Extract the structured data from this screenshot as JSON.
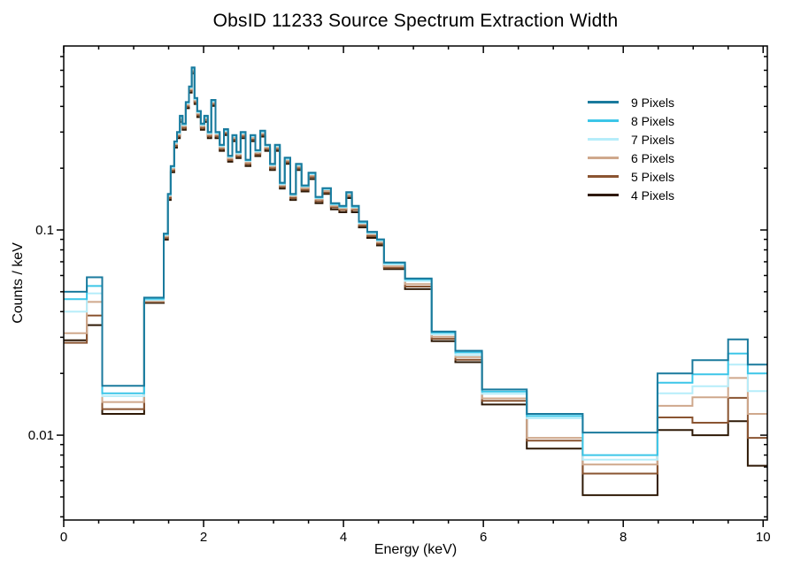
{
  "chart_data": {
    "type": "line",
    "mode": "step-histogram",
    "title": "ObsID 11233 Source Spectrum Extraction Width",
    "xlabel": "Energy (keV)",
    "ylabel": "Counts / keV",
    "yscale": "log",
    "xlim": [
      0,
      10.06
    ],
    "ylim": [
      0.00386,
      0.788
    ],
    "grid": false,
    "legend_position": "upper-right",
    "background": "#ffffff",
    "frame_color": "#000000",
    "x_major_ticks": [
      0,
      2,
      4,
      6,
      8,
      10
    ],
    "x_minor_ticks": [
      0.5,
      1,
      1.5,
      2.5,
      3,
      3.5,
      4.5,
      5,
      5.5,
      6.5,
      7,
      7.5,
      8.5,
      9,
      9.5
    ],
    "y_major_ticks": [
      {
        "value": 0.1,
        "label": "0.1"
      },
      {
        "value": 0.01,
        "label": "0.01"
      }
    ],
    "y_minor_ticks": [
      0.004,
      0.005,
      0.006,
      0.007,
      0.008,
      0.009,
      0.02,
      0.03,
      0.04,
      0.05,
      0.06,
      0.07,
      0.08,
      0.09,
      0.2,
      0.3,
      0.4,
      0.5,
      0.6,
      0.7
    ],
    "bin_edges": [
      0,
      0.33,
      0.55,
      1.15,
      1.43,
      1.49,
      1.53,
      1.58,
      1.62,
      1.66,
      1.7,
      1.745,
      1.79,
      1.83,
      1.87,
      1.91,
      1.96,
      2.01,
      2.06,
      2.11,
      2.17,
      2.23,
      2.29,
      2.35,
      2.41,
      2.47,
      2.53,
      2.6,
      2.67,
      2.74,
      2.81,
      2.88,
      2.95,
      3.02,
      3.09,
      3.16,
      3.24,
      3.32,
      3.4,
      3.5,
      3.6,
      3.7,
      3.82,
      3.94,
      4.04,
      4.12,
      4.22,
      4.34,
      4.48,
      4.58,
      4.88,
      5.26,
      5.6,
      5.98,
      6.62,
      7.42,
      8.49,
      8.99,
      9.5,
      9.78,
      10.06
    ],
    "series": [
      {
        "name": "9 Pixels",
        "color": "#1a7a9d",
        "values": [
          0.05,
          0.0588,
          0.0174,
          0.0468,
          0.096,
          0.15,
          0.205,
          0.27,
          0.3,
          0.36,
          0.33,
          0.42,
          0.5,
          0.62,
          0.44,
          0.38,
          0.33,
          0.36,
          0.3,
          0.43,
          0.3,
          0.26,
          0.31,
          0.23,
          0.29,
          0.24,
          0.3,
          0.22,
          0.29,
          0.245,
          0.305,
          0.26,
          0.21,
          0.26,
          0.17,
          0.225,
          0.15,
          0.21,
          0.165,
          0.19,
          0.145,
          0.16,
          0.135,
          0.131,
          0.153,
          0.131,
          0.11,
          0.098,
          0.09,
          0.0695,
          0.058,
          0.032,
          0.0258,
          0.0167,
          0.0127,
          0.0103,
          0.02,
          0.0232,
          0.0293,
          0.0221
        ]
      },
      {
        "name": "8 Pixels",
        "color": "#3cc6e8",
        "values": [
          0.046,
          0.0533,
          0.016,
          0.0462,
          0.0955,
          0.149,
          0.204,
          0.269,
          0.299,
          0.358,
          0.328,
          0.418,
          0.498,
          0.617,
          0.438,
          0.378,
          0.328,
          0.358,
          0.299,
          0.428,
          0.299,
          0.259,
          0.308,
          0.229,
          0.289,
          0.239,
          0.299,
          0.219,
          0.289,
          0.244,
          0.303,
          0.259,
          0.209,
          0.259,
          0.169,
          0.224,
          0.149,
          0.209,
          0.164,
          0.189,
          0.144,
          0.159,
          0.134,
          0.13,
          0.152,
          0.13,
          0.109,
          0.0975,
          0.0896,
          0.069,
          0.0575,
          0.0316,
          0.0253,
          0.0163,
          0.0124,
          0.008,
          0.018,
          0.0198,
          0.025,
          0.02
        ]
      },
      {
        "name": "7 Pixels",
        "color": "#b6edfa",
        "values": [
          0.04,
          0.0491,
          0.0155,
          0.0456,
          0.0946,
          0.148,
          0.202,
          0.266,
          0.296,
          0.355,
          0.325,
          0.414,
          0.493,
          0.611,
          0.433,
          0.374,
          0.325,
          0.355,
          0.296,
          0.424,
          0.296,
          0.256,
          0.305,
          0.227,
          0.286,
          0.236,
          0.296,
          0.217,
          0.286,
          0.241,
          0.3,
          0.256,
          0.207,
          0.256,
          0.167,
          0.222,
          0.148,
          0.207,
          0.163,
          0.187,
          0.143,
          0.158,
          0.133,
          0.129,
          0.151,
          0.129,
          0.108,
          0.0965,
          0.0887,
          0.068,
          0.0565,
          0.031,
          0.0246,
          0.0159,
          0.0121,
          0.0076,
          0.016,
          0.0173,
          0.0221,
          0.0164
        ]
      },
      {
        "name": "6 Pixels",
        "color": "#cfa88c",
        "values": [
          0.0314,
          0.0446,
          0.0145,
          0.045,
          0.0931,
          0.146,
          0.199,
          0.262,
          0.291,
          0.349,
          0.32,
          0.407,
          0.485,
          0.601,
          0.427,
          0.369,
          0.32,
          0.349,
          0.291,
          0.417,
          0.291,
          0.252,
          0.301,
          0.223,
          0.281,
          0.233,
          0.291,
          0.213,
          0.281,
          0.238,
          0.296,
          0.252,
          0.204,
          0.252,
          0.165,
          0.218,
          0.146,
          0.204,
          0.16,
          0.184,
          0.141,
          0.155,
          0.131,
          0.127,
          0.148,
          0.127,
          0.107,
          0.0951,
          0.0873,
          0.0665,
          0.0545,
          0.0302,
          0.024,
          0.0151,
          0.0097,
          0.0072,
          0.0139,
          0.0153,
          0.019,
          0.0127
        ]
      },
      {
        "name": "5 Pixels",
        "color": "#8a5431",
        "values": [
          0.0282,
          0.0383,
          0.0134,
          0.0446,
          0.0914,
          0.143,
          0.195,
          0.257,
          0.286,
          0.343,
          0.314,
          0.4,
          0.476,
          0.59,
          0.419,
          0.362,
          0.314,
          0.343,
          0.286,
          0.409,
          0.286,
          0.248,
          0.295,
          0.219,
          0.276,
          0.228,
          0.286,
          0.209,
          0.276,
          0.233,
          0.29,
          0.248,
          0.2,
          0.248,
          0.162,
          0.214,
          0.143,
          0.2,
          0.157,
          0.181,
          0.138,
          0.152,
          0.129,
          0.125,
          0.146,
          0.125,
          0.105,
          0.0933,
          0.0857,
          0.0655,
          0.053,
          0.0295,
          0.0233,
          0.0147,
          0.0094,
          0.0065,
          0.0122,
          0.0115,
          0.0152,
          0.0097
        ]
      },
      {
        "name": "4 Pixels",
        "color": "#2e1906",
        "values": [
          0.029,
          0.0344,
          0.0127,
          0.0441,
          0.0897,
          0.14,
          0.191,
          0.252,
          0.28,
          0.336,
          0.308,
          0.392,
          0.467,
          0.579,
          0.411,
          0.355,
          0.308,
          0.336,
          0.28,
          0.402,
          0.28,
          0.243,
          0.29,
          0.215,
          0.271,
          0.224,
          0.28,
          0.205,
          0.271,
          0.229,
          0.285,
          0.243,
          0.196,
          0.243,
          0.159,
          0.21,
          0.14,
          0.196,
          0.154,
          0.177,
          0.135,
          0.15,
          0.126,
          0.122,
          0.143,
          0.122,
          0.103,
          0.0915,
          0.0841,
          0.0645,
          0.0515,
          0.0287,
          0.0227,
          0.0141,
          0.0086,
          0.0051,
          0.0106,
          0.01,
          0.0117,
          0.0071
        ]
      }
    ]
  }
}
